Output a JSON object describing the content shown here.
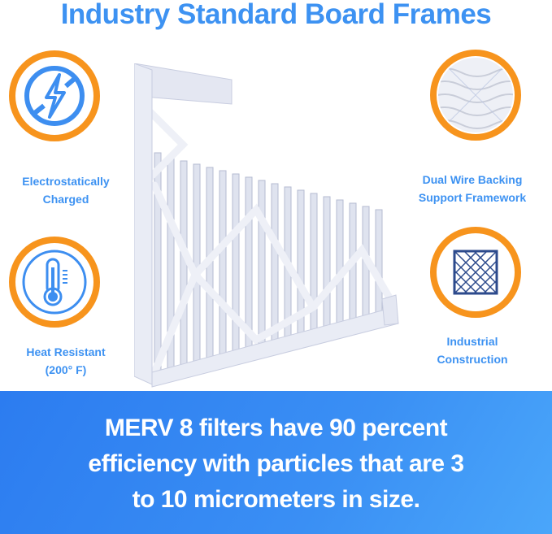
{
  "title": "Industry Standard Board Frames",
  "features": [
    {
      "label_lines": [
        "Electrostatically",
        "Charged"
      ],
      "icon": "electrostatic-bolt-icon"
    },
    {
      "label_lines": [
        "Heat Resistant",
        "(200° F)"
      ],
      "icon": "thermometer-icon"
    },
    {
      "label_lines": [
        "Dual Wire Backing",
        "Support Framework"
      ],
      "icon": "wire-mesh-photo-icon"
    },
    {
      "label_lines": [
        "Industrial",
        "Construction"
      ],
      "icon": "diamond-grid-icon"
    }
  ],
  "banner": {
    "lines": [
      "MERV 8 filters have 90 percent",
      "efficiency with particles that are 3",
      "to 10 micrometers in size."
    ]
  },
  "colors": {
    "accent_blue": "#3d92f2",
    "ring_orange": "#f7941d",
    "banner_start": "#2c7cf0",
    "banner_end": "#4aa6fa"
  }
}
